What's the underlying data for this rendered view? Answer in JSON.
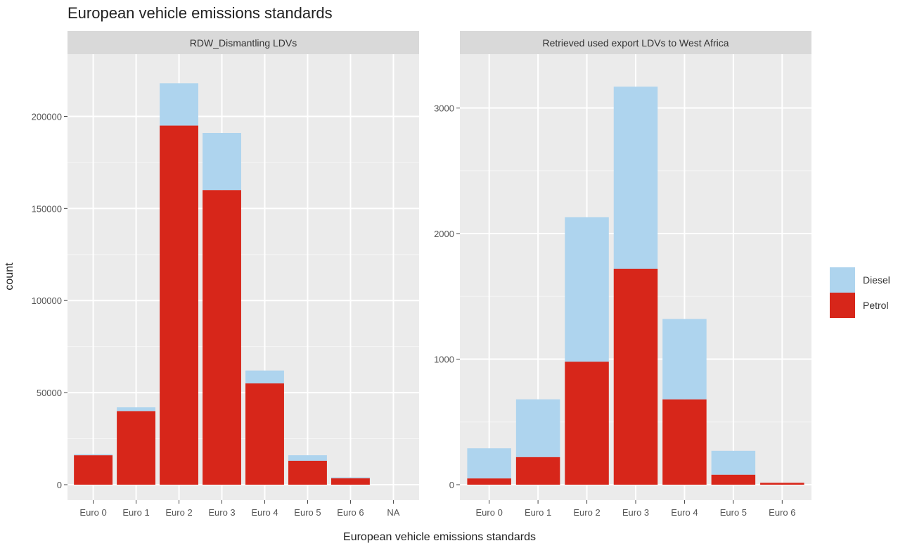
{
  "chart_data": {
    "type": "bar",
    "stacked": true,
    "title": "European vehicle emissions standards",
    "xlabel": "European vehicle emissions standards",
    "ylabel": "count",
    "legend": {
      "placement": "right",
      "entries": [
        {
          "name": "Diesel",
          "color": "#aed4ee"
        },
        {
          "name": "Petrol",
          "color": "#d7261a"
        }
      ]
    },
    "grid": true,
    "panels": [
      {
        "strip_label": "RDW_Dismantling LDVs",
        "categories": [
          "Euro 0",
          "Euro 1",
          "Euro 2",
          "Euro 3",
          "Euro 4",
          "Euro 5",
          "Euro 6",
          "NA"
        ],
        "series": [
          {
            "name": "Petrol",
            "values": [
              16000,
              40000,
              195000,
              160000,
              55000,
              13000,
              3500,
              0
            ]
          },
          {
            "name": "Diesel",
            "values": [
              500,
              2000,
              23000,
              31000,
              7000,
              3000,
              500,
              0
            ]
          }
        ],
        "ylim": [
          0,
          225000
        ],
        "yticks": [
          0,
          50000,
          100000,
          150000,
          200000
        ]
      },
      {
        "strip_label": "Retrieved used export LDVs to West Africa",
        "categories": [
          "Euro 0",
          "Euro 1",
          "Euro 2",
          "Euro 3",
          "Euro 4",
          "Euro 5",
          "Euro 6"
        ],
        "series": [
          {
            "name": "Petrol",
            "values": [
              50,
              220,
              980,
              1720,
              680,
              80,
              15
            ]
          },
          {
            "name": "Diesel",
            "values": [
              240,
              460,
              1150,
              1450,
              640,
              190,
              0
            ]
          }
        ],
        "ylim": [
          0,
          3300
        ],
        "yticks": [
          0,
          1000,
          2000,
          3000
        ]
      }
    ]
  }
}
